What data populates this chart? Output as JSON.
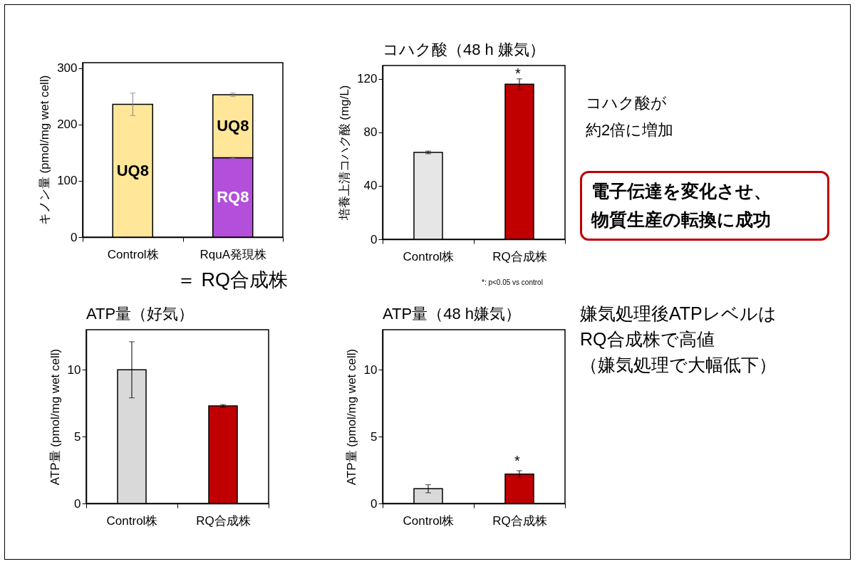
{
  "chart_data": [
    {
      "type": "bar",
      "stacked": true,
      "categories": [
        "Control株",
        "RquA発現株"
      ],
      "ylabel": "キノン量 (pmol/mg wet cell)",
      "ylim": [
        0,
        310
      ],
      "yticks": [
        0,
        100,
        200,
        300
      ],
      "series": [
        {
          "name": "RQ8",
          "color": "#b34fdb",
          "values": [
            null,
            141
          ],
          "errors": [
            null,
            1
          ]
        },
        {
          "name": "UQ8",
          "color": "#ffe699",
          "values": [
            236,
            112
          ],
          "errors": [
            20,
            3
          ]
        }
      ],
      "annotations": [
        "＝ RQ合成株"
      ]
    },
    {
      "type": "bar",
      "title": "コハク酸（48 h 嫌気）",
      "categories": [
        "Control株",
        "RQ合成株"
      ],
      "values": [
        65,
        116
      ],
      "colors": [
        "#e6e6e6",
        "#c00000"
      ],
      "errors": [
        1,
        4
      ],
      "ylabel": "培養上清コハク酸 (mg/L)",
      "ylim": [
        0,
        130
      ],
      "yticks": [
        0,
        40,
        80,
        120
      ],
      "annotations": [
        "*",
        "*: p<0.05 vs control",
        "コハク酸が",
        "約2倍に増加",
        "電子伝達を変化させ、",
        "物質生産の転換に成功"
      ]
    },
    {
      "type": "bar",
      "title": "ATP量（好気）",
      "categories": [
        "Control株",
        "RQ合成株"
      ],
      "values": [
        10,
        7.3
      ],
      "colors": [
        "#d9d9d9",
        "#c00000"
      ],
      "errors": [
        2.1,
        0.1
      ],
      "ylabel": "ATP量 (pmol/mg wet cell)",
      "ylim": [
        0,
        13
      ],
      "yticks": [
        0,
        5,
        10
      ]
    },
    {
      "type": "bar",
      "title": "ATP量（48 h嫌気）",
      "categories": [
        "Control株",
        "RQ合成株"
      ],
      "values": [
        1.1,
        2.2
      ],
      "colors": [
        "#d9d9d9",
        "#c00000"
      ],
      "errors": [
        0.3,
        0.25
      ],
      "ylabel": "ATP量 (pmol/mg wet cell)",
      "ylim": [
        0,
        13
      ],
      "yticks": [
        0,
        5,
        10
      ],
      "annotations": [
        "*",
        "嫌気処理後ATPレベルは",
        "RQ合成株で高値",
        "（嫌気処理で大幅低下）"
      ]
    }
  ]
}
